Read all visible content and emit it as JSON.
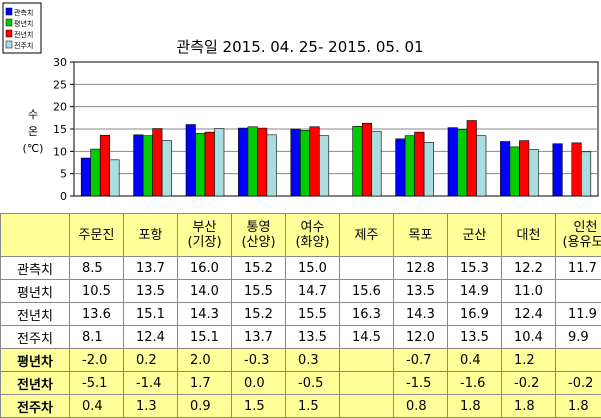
{
  "chart_data": {
    "type": "bar",
    "title": "관측일 2015. 04. 25-  2015. 05. 01",
    "ylabel": [
      "수",
      "온",
      "(℃)"
    ],
    "ylim": [
      0,
      30
    ],
    "yticks": [
      0,
      5,
      10,
      15,
      20,
      25,
      30
    ],
    "grid": true,
    "legend_position": "top-left",
    "categories": [
      [
        "주문진"
      ],
      [
        "포항"
      ],
      [
        "부산",
        "(기장)"
      ],
      [
        "통영",
        "(산양)"
      ],
      [
        "여수",
        "(화양)"
      ],
      [
        "제주"
      ],
      [
        "목포"
      ],
      [
        "군산"
      ],
      [
        "대천"
      ],
      [
        "인천",
        "(용유도)"
      ]
    ],
    "series": [
      {
        "name": "관측치",
        "color": "#0000ff",
        "values": [
          8.5,
          13.7,
          16.0,
          15.2,
          15.0,
          null,
          12.8,
          15.3,
          12.2,
          11.7
        ]
      },
      {
        "name": "평년치",
        "color": "#00cc00",
        "values": [
          10.5,
          13.5,
          14.0,
          15.5,
          14.7,
          15.6,
          13.5,
          14.9,
          11.0,
          null
        ]
      },
      {
        "name": "전년치",
        "color": "#ff0000",
        "values": [
          13.6,
          15.1,
          14.3,
          15.2,
          15.5,
          16.3,
          14.3,
          16.9,
          12.4,
          11.9
        ]
      },
      {
        "name": "전주치",
        "color": "#aadddd",
        "values": [
          8.1,
          12.4,
          15.1,
          13.7,
          13.5,
          14.5,
          12.0,
          13.5,
          10.4,
          9.9
        ]
      }
    ]
  },
  "table": {
    "rows": [
      {
        "label": "관측치",
        "cells": [
          "8.5",
          "13.7",
          "16.0",
          "15.2",
          "15.0",
          "",
          "12.8",
          "15.3",
          "12.2",
          "11.7"
        ]
      },
      {
        "label": "평년치",
        "cells": [
          "10.5",
          "13.5",
          "14.0",
          "15.5",
          "14.7",
          "15.6",
          "13.5",
          "14.9",
          "11.0",
          ""
        ]
      },
      {
        "label": "전년치",
        "cells": [
          "13.6",
          "15.1",
          "14.3",
          "15.2",
          "15.5",
          "16.3",
          "14.3",
          "16.9",
          "12.4",
          "11.9"
        ]
      },
      {
        "label": "전주치",
        "cells": [
          "8.1",
          "12.4",
          "15.1",
          "13.7",
          "13.5",
          "14.5",
          "12.0",
          "13.5",
          "10.4",
          "9.9"
        ]
      },
      {
        "label": "평년차",
        "highlight": true,
        "cells": [
          "-2.0",
          "0.2",
          "2.0",
          "-0.3",
          "0.3",
          "",
          "-0.7",
          "0.4",
          "1.2",
          ""
        ]
      },
      {
        "label": "전년차",
        "highlight": true,
        "cells": [
          "-5.1",
          "-1.4",
          "1.7",
          "0.0",
          "-0.5",
          "",
          "-1.5",
          "-1.6",
          "-0.2",
          "-0.2"
        ]
      },
      {
        "label": "전주차",
        "highlight": true,
        "cells": [
          "0.4",
          "1.3",
          "0.9",
          "1.5",
          "1.5",
          "",
          "0.8",
          "1.8",
          "1.8",
          "1.8"
        ]
      }
    ]
  }
}
